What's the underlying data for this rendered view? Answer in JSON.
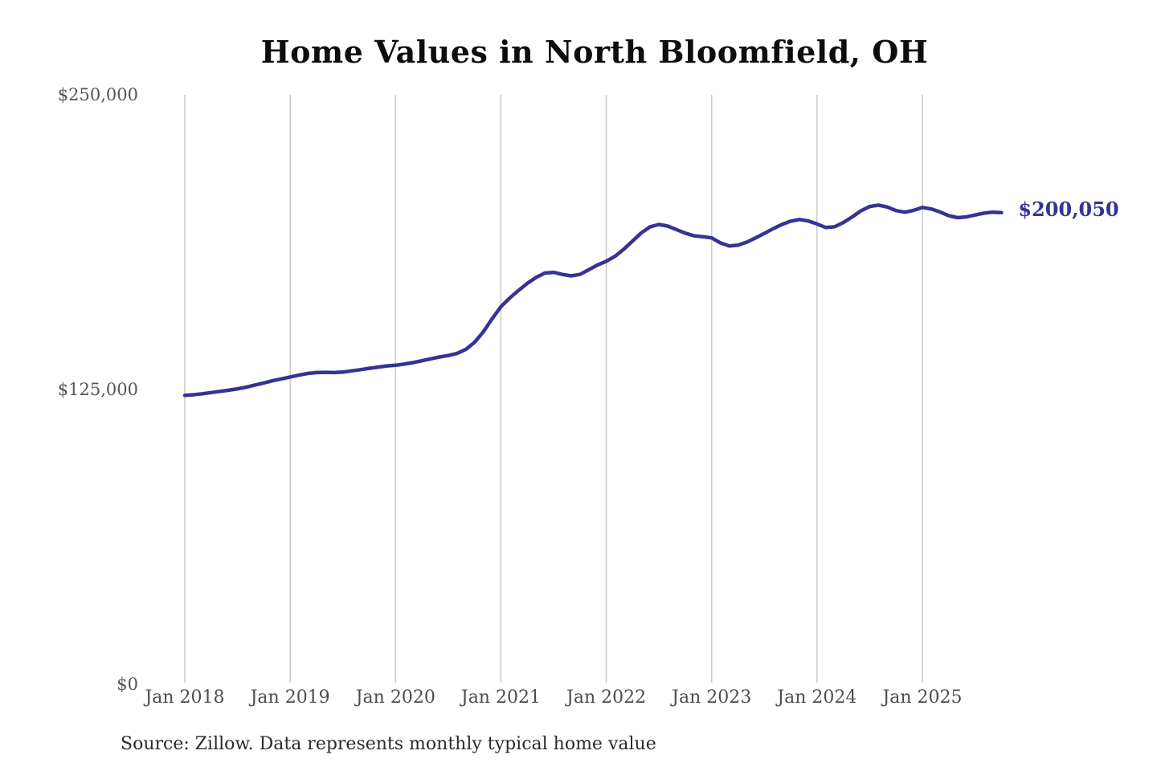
{
  "title": "Home Values in North Bloomfield, OH",
  "source_note": "Source: Zillow. Data represents monthly typical home value",
  "end_label": "$200,050",
  "colors": {
    "line": "#363394",
    "end_label": "#363394",
    "gridline": "#cccccc",
    "tick_label": "#4d4d4d",
    "title": "#0d0d0d",
    "background": "#ffffff"
  },
  "chart_data": {
    "type": "line",
    "title": "Home Values in North Bloomfield, OH",
    "xlabel": "",
    "ylabel": "",
    "ylim": [
      0,
      250000
    ],
    "y_ticks": [
      250000,
      125000,
      0
    ],
    "y_tick_labels": [
      "$250,000",
      "$125,000",
      "$0"
    ],
    "x_tick_labels": [
      "Jan 2018",
      "Jan 2019",
      "Jan 2020",
      "Jan 2021",
      "Jan 2022",
      "Jan 2023",
      "Jan 2024",
      "Jan 2025"
    ],
    "grid": "vertical-only",
    "legend": "none",
    "unit": "USD",
    "cadence": "monthly",
    "x_start_month": "2018-01",
    "x_end_month": "2025-10",
    "final_value": 200050,
    "final_value_label": "$200,050",
    "series": [
      {
        "name": "Typical home value",
        "monthly_values": [
          122500,
          122800,
          123200,
          123700,
          124200,
          124700,
          125300,
          126000,
          126900,
          127800,
          128700,
          129500,
          130300,
          131100,
          131800,
          132200,
          132300,
          132200,
          132400,
          132900,
          133400,
          134000,
          134500,
          135000,
          135300,
          135800,
          136400,
          137200,
          138000,
          138800,
          139400,
          140300,
          142000,
          145000,
          149500,
          155000,
          160100,
          163800,
          167000,
          170000,
          172500,
          174400,
          174700,
          173800,
          173200,
          173800,
          175800,
          177800,
          179400,
          181500,
          184500,
          188000,
          191500,
          194000,
          195000,
          194300,
          192800,
          191300,
          190200,
          189800,
          189300,
          187200,
          185900,
          186200,
          187500,
          189300,
          191200,
          193200,
          195000,
          196400,
          197100,
          196500,
          195200,
          193700,
          194000,
          195800,
          198200,
          200800,
          202600,
          203200,
          202400,
          200900,
          200200,
          201000,
          202200,
          201600,
          200300,
          198700,
          197900,
          198200,
          199000,
          199800,
          200200,
          200050
        ]
      }
    ]
  }
}
